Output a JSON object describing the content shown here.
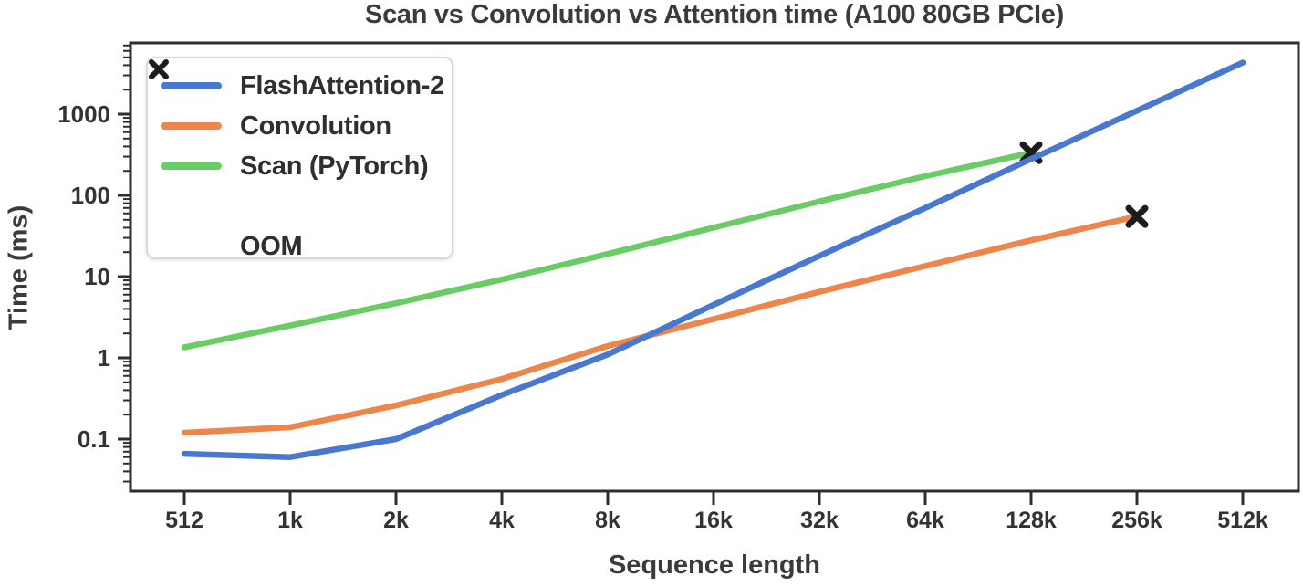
{
  "figure": {
    "background": "#ffffff"
  },
  "style": {
    "text_color": "#3b3b3b",
    "tick_text_color": "#333333",
    "spine_color": "#2e2e2e",
    "legend_border_color": "#d8d8d8"
  },
  "chart_data": {
    "type": "line",
    "title": "Scan vs Convolution vs Attention time (A100 80GB PCIe)",
    "xlabel": "Sequence length",
    "ylabel": "Time (ms)",
    "x_scale": "log2",
    "y_scale": "log10",
    "grid": false,
    "legend_position": "upper left",
    "xlim": [
      360,
      740000
    ],
    "ylim": [
      0.023,
      7500
    ],
    "x_tick_values": [
      512,
      1024,
      2048,
      4096,
      8192,
      16384,
      32768,
      65536,
      131072,
      262144,
      524288
    ],
    "x_tick_labels": [
      "512",
      "1k",
      "2k",
      "4k",
      "8k",
      "16k",
      "32k",
      "64k",
      "128k",
      "256k",
      "512k"
    ],
    "y_tick_values": [
      1000,
      100,
      10,
      1,
      0.1
    ],
    "y_tick_labels": [
      "1000",
      "100",
      "10",
      "1",
      "0.1"
    ],
    "x": [
      512,
      1024,
      2048,
      4096,
      8192,
      16384,
      32768,
      65536,
      131072,
      262144,
      524288
    ],
    "series": [
      {
        "name": "FlashAttention-2",
        "color": "#4878d0",
        "values": [
          0.066,
          0.06,
          0.1,
          0.35,
          1.1,
          4.5,
          18,
          70,
          280,
          1100,
          4300
        ],
        "oom_at_end": false
      },
      {
        "name": "Convolution",
        "color": "#ee854a",
        "values": [
          0.12,
          0.14,
          0.26,
          0.55,
          1.4,
          3.0,
          6.5,
          13.5,
          28,
          55
        ],
        "oom_at_end": true
      },
      {
        "name": "Scan (PyTorch)",
        "color": "#6acc64",
        "values": [
          1.35,
          2.5,
          4.7,
          9.2,
          19,
          40,
          84,
          172,
          335
        ],
        "oom_at_end": true
      }
    ],
    "oom_marker": {
      "label": "OOM",
      "color": "#1c1c1c"
    }
  }
}
